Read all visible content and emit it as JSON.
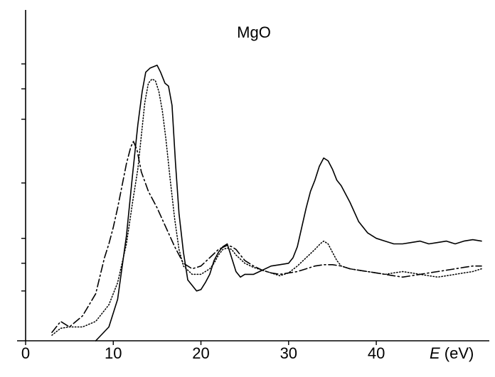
{
  "chart_data": {
    "type": "line",
    "title": "MgO",
    "xlabel_var": "E",
    "xlabel_unit": " (eV)",
    "ylabel": "",
    "xlim": [
      0,
      52
    ],
    "ylim": [
      0,
      1.0
    ],
    "xticks": [
      0,
      10,
      20,
      30,
      40
    ],
    "xtick_labels": [
      "0",
      "10",
      "20",
      "30",
      "40"
    ],
    "yticks": [
      0.18,
      0.28,
      0.37,
      0.57,
      0.8,
      0.91,
      1.0
    ],
    "grid": false,
    "legend": "none",
    "series": [
      {
        "style": "solid",
        "x": [
          8.0,
          9.5,
          10.5,
          11.5,
          12.2,
          12.8,
          13.3,
          13.7,
          14.2,
          14.6,
          15.0,
          15.4,
          15.9,
          16.3,
          16.7,
          17.1,
          17.5,
          18.0,
          18.5,
          19.0,
          19.5,
          20.0,
          20.5,
          21.0,
          21.5,
          22.0,
          22.5,
          23.0,
          23.5,
          24.0,
          24.5,
          25.0,
          26.0,
          27.0,
          28.0,
          29.0,
          30.0,
          30.5,
          31.0,
          31.5,
          32.0,
          32.5,
          33.0,
          33.5,
          34.0,
          34.5,
          35.0,
          35.5,
          36.0,
          37.0,
          38.0,
          39.0,
          40.0,
          41.0,
          42.0,
          43.0,
          44.0,
          45.0,
          46.0,
          47.0,
          48.0,
          49.0,
          50.0,
          51.0,
          52.0
        ],
        "y": [
          0.0,
          0.05,
          0.15,
          0.38,
          0.6,
          0.78,
          0.9,
          0.97,
          0.985,
          0.99,
          0.995,
          0.97,
          0.93,
          0.92,
          0.85,
          0.64,
          0.46,
          0.32,
          0.22,
          0.2,
          0.18,
          0.185,
          0.21,
          0.24,
          0.29,
          0.32,
          0.34,
          0.35,
          0.3,
          0.25,
          0.23,
          0.24,
          0.24,
          0.255,
          0.27,
          0.275,
          0.28,
          0.3,
          0.34,
          0.41,
          0.48,
          0.54,
          0.58,
          0.63,
          0.66,
          0.65,
          0.62,
          0.58,
          0.56,
          0.5,
          0.43,
          0.39,
          0.37,
          0.36,
          0.35,
          0.35,
          0.355,
          0.36,
          0.35,
          0.355,
          0.36,
          0.35,
          0.36,
          0.365,
          0.36
        ]
      },
      {
        "style": "dotted",
        "x": [
          3.0,
          4.0,
          5.0,
          6.5,
          8.0,
          9.5,
          10.5,
          11.5,
          12.2,
          12.8,
          13.2,
          13.6,
          14.0,
          14.4,
          14.8,
          15.2,
          15.6,
          16.0,
          16.5,
          17.0,
          17.5,
          18.0,
          19.0,
          20.0,
          21.0,
          21.5,
          22.0,
          22.5,
          23.0,
          23.5,
          24.0,
          25.0,
          26.0,
          27.0,
          28.0,
          29.0,
          30.0,
          31.0,
          32.0,
          33.0,
          33.6,
          34.0,
          34.5,
          35.0,
          35.5,
          36.0,
          37.0,
          38.0,
          39.0,
          40.0,
          41.0,
          42.0,
          43.0,
          44.0,
          45.0,
          46.0,
          47.0,
          48.0,
          49.0,
          50.0,
          51.0,
          52.0
        ],
        "y": [
          0.02,
          0.045,
          0.05,
          0.05,
          0.07,
          0.13,
          0.21,
          0.35,
          0.5,
          0.62,
          0.74,
          0.86,
          0.93,
          0.945,
          0.94,
          0.9,
          0.83,
          0.73,
          0.58,
          0.44,
          0.33,
          0.27,
          0.24,
          0.24,
          0.26,
          0.28,
          0.31,
          0.33,
          0.335,
          0.33,
          0.31,
          0.28,
          0.265,
          0.255,
          0.245,
          0.235,
          0.245,
          0.27,
          0.3,
          0.33,
          0.35,
          0.36,
          0.35,
          0.32,
          0.29,
          0.27,
          0.26,
          0.255,
          0.25,
          0.245,
          0.24,
          0.245,
          0.25,
          0.245,
          0.24,
          0.235,
          0.23,
          0.235,
          0.24,
          0.245,
          0.25,
          0.26
        ]
      },
      {
        "style": "dash-dot",
        "x": [
          3.0,
          4.0,
          5.0,
          6.5,
          8.0,
          9.0,
          9.5,
          10.0,
          10.5,
          11.0,
          11.5,
          12.0,
          12.3,
          12.7,
          13.2,
          14.0,
          15.0,
          16.0,
          17.0,
          18.0,
          19.0,
          20.0,
          21.0,
          22.0,
          23.0,
          23.5,
          24.0,
          25.0,
          26.0,
          27.0,
          28.0,
          29.0,
          30.0,
          31.0,
          32.0,
          33.0,
          34.0,
          35.0,
          36.0,
          37.0,
          38.0,
          39.0,
          40.0,
          41.0,
          42.0,
          43.0,
          44.0,
          45.0,
          46.0,
          47.0,
          48.0,
          49.0,
          50.0,
          51.0,
          52.0
        ],
        "y": [
          0.03,
          0.07,
          0.05,
          0.09,
          0.17,
          0.3,
          0.35,
          0.41,
          0.48,
          0.56,
          0.64,
          0.7,
          0.72,
          0.69,
          0.61,
          0.54,
          0.48,
          0.41,
          0.34,
          0.28,
          0.26,
          0.27,
          0.3,
          0.33,
          0.345,
          0.34,
          0.33,
          0.29,
          0.27,
          0.255,
          0.245,
          0.24,
          0.245,
          0.25,
          0.26,
          0.27,
          0.275,
          0.275,
          0.27,
          0.26,
          0.255,
          0.25,
          0.245,
          0.24,
          0.235,
          0.23,
          0.235,
          0.24,
          0.245,
          0.25,
          0.255,
          0.26,
          0.265,
          0.27,
          0.27
        ]
      }
    ]
  }
}
